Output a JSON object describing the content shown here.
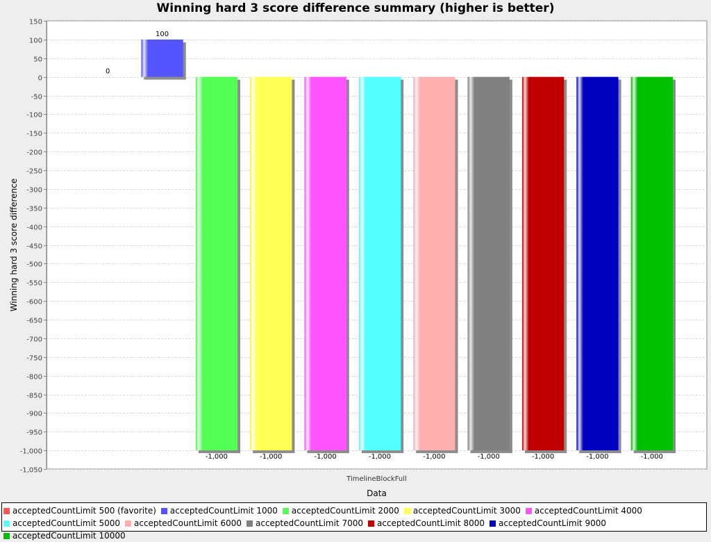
{
  "chart_data": {
    "type": "bar",
    "title": "Winning hard 3 score difference summary (higher is better)",
    "xlabel": "Data",
    "ylabel": "Winning hard 3 score difference",
    "categories": [
      "TimelineBlockFull"
    ],
    "ylim": [
      -1050,
      150
    ],
    "ytick_step": 50,
    "grid": true,
    "legend_position": "bottom",
    "series": [
      {
        "name": "acceptedCountLimit 500 (favorite)",
        "values": [
          0
        ],
        "color": "#ff5555",
        "label": "0"
      },
      {
        "name": "acceptedCountLimit 1000",
        "values": [
          100
        ],
        "color": "#5555ff",
        "label": "100"
      },
      {
        "name": "acceptedCountLimit 2000",
        "values": [
          -1000
        ],
        "color": "#55ff55",
        "label": "-1,000"
      },
      {
        "name": "acceptedCountLimit 3000",
        "values": [
          -1000
        ],
        "color": "#ffff55",
        "label": "-1,000"
      },
      {
        "name": "acceptedCountLimit 4000",
        "values": [
          -1000
        ],
        "color": "#ff55ff",
        "label": "-1,000"
      },
      {
        "name": "acceptedCountLimit 5000",
        "values": [
          -1000
        ],
        "color": "#55ffff",
        "label": "-1,000"
      },
      {
        "name": "acceptedCountLimit 6000",
        "values": [
          -1000
        ],
        "color": "#ffafaf",
        "label": "-1,000"
      },
      {
        "name": "acceptedCountLimit 7000",
        "values": [
          -1000
        ],
        "color": "#808080",
        "label": "-1,000"
      },
      {
        "name": "acceptedCountLimit 8000",
        "values": [
          -1000
        ],
        "color": "#c00000",
        "label": "-1,000"
      },
      {
        "name": "acceptedCountLimit 9000",
        "values": [
          -1000
        ],
        "color": "#0000c0",
        "label": "-1,000"
      },
      {
        "name": "acceptedCountLimit 10000",
        "values": [
          -1000
        ],
        "color": "#00c000",
        "label": "-1,000"
      }
    ]
  }
}
